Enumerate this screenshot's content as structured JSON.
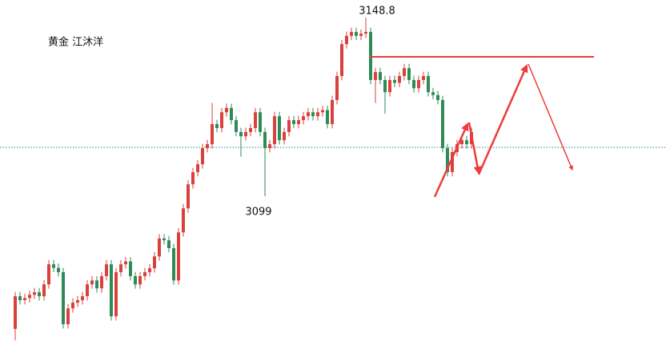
{
  "chart_data": {
    "type": "candlestick",
    "title": "黄金 江沐洋",
    "annotations": [
      "3148.8",
      "3099"
    ],
    "ylim": [
      3057.5,
      3153.7
    ],
    "price_line": 3112.6,
    "up_color": "#d9413c",
    "down_color": "#2e8b57",
    "open": [
      3062.0,
      3071.1,
      3070.0,
      3070.6,
      3071.5,
      3072.2,
      3071.1,
      3074.4,
      3080.0,
      3079.0,
      3077.8,
      3063.3,
      3067.7,
      3069.3,
      3070.0,
      3071.1,
      3074.4,
      3075.5,
      3073.3,
      3076.7,
      3080.0,
      3065.5,
      3077.8,
      3080.0,
      3080.8,
      3076.7,
      3074.4,
      3076.7,
      3077.8,
      3078.9,
      3082.2,
      3087.2,
      3086.7,
      3084.5,
      3075.5,
      3088.9,
      3095.6,
      3102.3,
      3105.7,
      3107.9,
      3112.4,
      3113.5,
      3119.1,
      3118.0,
      3122.4,
      3123.6,
      3120.2,
      3116.9,
      3115.7,
      3116.9,
      3118.0,
      3122.4,
      3116.9,
      3112.4,
      3113.5,
      3121.3,
      3114.6,
      3116.9,
      3120.2,
      3119.1,
      3120.2,
      3121.3,
      3122.4,
      3121.3,
      3122.4,
      3123.0,
      3119.1,
      3125.8,
      3132.5,
      3141.4,
      3143.7,
      3144.8,
      3143.7,
      3144.3,
      3144.8,
      3131.4,
      3133.6,
      3131.4,
      3128.0,
      3131.4,
      3130.6,
      3132.5,
      3134.7,
      3131.4,
      3129.1,
      3131.4,
      3132.5,
      3128.0,
      3127.2,
      3125.8,
      3112.4,
      3105.7,
      3111.3,
      3113.5,
      3114.6,
      3113.5
    ],
    "high": [
      3072.3,
      3072.3,
      3071.8,
      3072.7,
      3073.4,
      3073.4,
      3075.6,
      3081.2,
      3081.2,
      3080.2,
      3079.0,
      3068.9,
      3070.5,
      3071.2,
      3072.3,
      3075.6,
      3076.7,
      3076.7,
      3077.9,
      3081.2,
      3081.2,
      3079.0,
      3081.2,
      3082.0,
      3082.0,
      3077.9,
      3077.9,
      3079.0,
      3080.1,
      3083.4,
      3088.4,
      3088.4,
      3087.9,
      3085.7,
      3090.1,
      3096.8,
      3103.5,
      3106.9,
      3109.1,
      3113.6,
      3114.7,
      3125.0,
      3120.3,
      3123.6,
      3124.8,
      3124.8,
      3121.4,
      3118.1,
      3118.1,
      3119.2,
      3123.6,
      3123.6,
      3118.1,
      3114.7,
      3122.5,
      3122.5,
      3118.1,
      3121.4,
      3121.4,
      3121.4,
      3122.5,
      3123.6,
      3123.6,
      3123.6,
      3124.2,
      3124.2,
      3127.0,
      3133.7,
      3142.6,
      3144.9,
      3146.0,
      3146.0,
      3145.5,
      3148.8,
      3146.0,
      3134.8,
      3134.8,
      3132.6,
      3132.6,
      3132.6,
      3133.7,
      3135.9,
      3135.9,
      3132.6,
      3132.6,
      3133.7,
      3133.7,
      3129.2,
      3128.4,
      3127.0,
      3113.6,
      3112.5,
      3114.7,
      3115.8,
      3115.8,
      3118.1
    ],
    "low": [
      3058.8,
      3068.8,
      3068.8,
      3069.4,
      3070.3,
      3069.9,
      3069.9,
      3073.2,
      3077.8,
      3076.6,
      3062.1,
      3062.1,
      3066.5,
      3068.1,
      3068.8,
      3069.9,
      3073.2,
      3072.1,
      3072.1,
      3075.5,
      3064.3,
      3064.3,
      3076.6,
      3078.8,
      3075.5,
      3073.2,
      3073.2,
      3075.5,
      3076.6,
      3077.7,
      3081.0,
      3085.5,
      3083.3,
      3074.3,
      3074.3,
      3087.7,
      3094.4,
      3101.1,
      3104.5,
      3106.7,
      3111.2,
      3112.3,
      3116.8,
      3116.8,
      3121.2,
      3119.0,
      3115.7,
      3110.0,
      3114.5,
      3115.7,
      3116.8,
      3115.7,
      3099.0,
      3111.2,
      3112.3,
      3113.4,
      3113.4,
      3115.7,
      3117.9,
      3117.9,
      3119.0,
      3120.1,
      3120.1,
      3120.1,
      3121.2,
      3117.9,
      3117.9,
      3124.6,
      3131.3,
      3140.2,
      3142.5,
      3142.5,
      3142.5,
      3143.1,
      3130.2,
      3125.0,
      3130.2,
      3122.0,
      3126.8,
      3129.4,
      3129.4,
      3131.3,
      3130.2,
      3127.9,
      3127.9,
      3130.2,
      3126.8,
      3126.0,
      3124.6,
      3111.2,
      3104.5,
      3104.5,
      3110.1,
      3112.3,
      3112.3,
      3112.3
    ],
    "close": [
      3071.1,
      3070.0,
      3070.6,
      3071.5,
      3072.2,
      3071.1,
      3074.4,
      3080.0,
      3079.0,
      3077.8,
      3063.3,
      3067.7,
      3069.3,
      3070.0,
      3071.1,
      3074.4,
      3075.5,
      3073.3,
      3076.7,
      3080.0,
      3065.5,
      3077.8,
      3080.0,
      3080.8,
      3076.7,
      3074.4,
      3076.7,
      3077.8,
      3078.9,
      3082.2,
      3087.2,
      3086.7,
      3084.5,
      3075.5,
      3088.9,
      3095.6,
      3102.3,
      3105.7,
      3107.9,
      3112.4,
      3113.5,
      3119.1,
      3118.0,
      3122.4,
      3123.6,
      3120.2,
      3116.9,
      3115.7,
      3116.9,
      3118.0,
      3122.4,
      3116.9,
      3112.4,
      3113.5,
      3121.3,
      3114.6,
      3116.9,
      3120.2,
      3119.1,
      3120.2,
      3121.3,
      3122.4,
      3121.3,
      3122.4,
      3123.0,
      3119.1,
      3125.8,
      3132.5,
      3141.4,
      3143.7,
      3144.8,
      3143.7,
      3144.3,
      3144.8,
      3131.4,
      3133.6,
      3131.4,
      3128.0,
      3131.4,
      3130.6,
      3132.5,
      3134.7,
      3131.4,
      3129.1,
      3131.4,
      3132.5,
      3128.0,
      3127.2,
      3125.8,
      3112.4,
      3105.7,
      3111.3,
      3113.5,
      3114.6,
      3113.5,
      3116.9
    ]
  }
}
